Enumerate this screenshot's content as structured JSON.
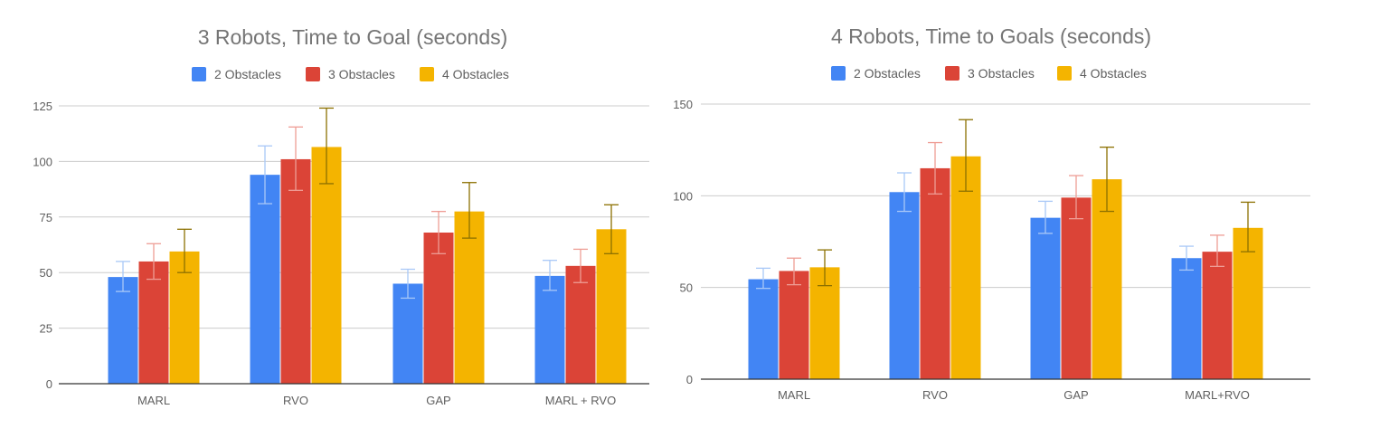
{
  "chart_data": [
    {
      "type": "bar",
      "title": "3 Robots, Time to Goal (seconds)",
      "categories": [
        "MARL",
        "RVO",
        "GAP",
        "MARL + RVO"
      ],
      "ylim": [
        0,
        125
      ],
      "yticks": [
        0,
        25,
        50,
        75,
        100,
        125
      ],
      "grid": true,
      "legend_position": "top",
      "error_bars": true,
      "series": [
        {
          "name": "2 Obstacles",
          "color": "#4285f4",
          "error_color": "#a9c8f7",
          "values": [
            48,
            94,
            45,
            48.5
          ],
          "error_low": [
            41.5,
            81,
            38.5,
            42
          ],
          "error_high": [
            55,
            107,
            51.5,
            55.5
          ]
        },
        {
          "name": "3 Obstacles",
          "color": "#db4437",
          "error_color": "#ee9d95",
          "values": [
            55,
            101,
            68,
            53
          ],
          "error_low": [
            47,
            87,
            58.5,
            45.5
          ],
          "error_high": [
            63,
            115.5,
            77.5,
            60.5
          ]
        },
        {
          "name": "4 Obstacles",
          "color": "#f4b400",
          "error_color": "#8c7000",
          "values": [
            59.5,
            106.5,
            77.5,
            69.5
          ],
          "error_low": [
            50,
            90,
            65.5,
            58.5
          ],
          "error_high": [
            69.5,
            124,
            90.5,
            80.5
          ]
        }
      ]
    },
    {
      "type": "bar",
      "title": "4 Robots, Time to Goals (seconds)",
      "categories": [
        "MARL",
        "RVO",
        "GAP",
        "MARL+RVO"
      ],
      "ylim": [
        0,
        150
      ],
      "yticks": [
        0,
        50,
        100,
        150
      ],
      "grid": true,
      "legend_position": "top",
      "error_bars": true,
      "series": [
        {
          "name": "2 Obstacles",
          "color": "#4285f4",
          "error_color": "#a9c8f7",
          "values": [
            54.5,
            102,
            88,
            66
          ],
          "error_low": [
            49.5,
            91.5,
            79.5,
            59.5
          ],
          "error_high": [
            60.5,
            112.5,
            97,
            72.5
          ]
        },
        {
          "name": "3 Obstacles",
          "color": "#db4437",
          "error_color": "#ee9d95",
          "values": [
            59,
            115,
            99,
            69.5
          ],
          "error_low": [
            51.5,
            101,
            87.5,
            61.5
          ],
          "error_high": [
            66,
            129,
            111,
            78.5
          ]
        },
        {
          "name": "4 Obstacles",
          "color": "#f4b400",
          "error_color": "#8c7000",
          "values": [
            61,
            121.5,
            109,
            82.5
          ],
          "error_low": [
            51,
            102.5,
            91.5,
            69.5
          ],
          "error_high": [
            70.5,
            141.5,
            126.5,
            96.5
          ]
        }
      ]
    }
  ]
}
